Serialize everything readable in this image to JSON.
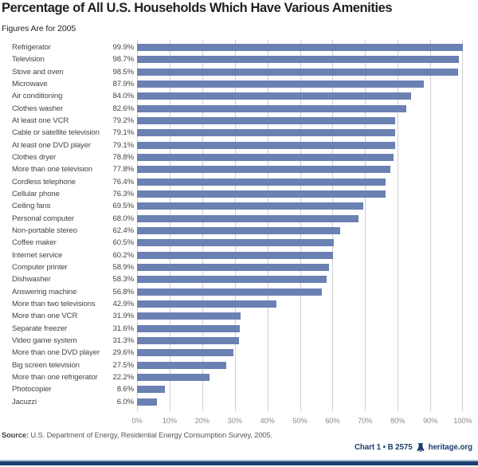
{
  "page": {
    "title": "Percentage of All U.S. Households Which Have Various Amenities",
    "subtitle": "Figures Are for 2005",
    "source_label": "Source:",
    "source_text": " U.S. Department of Energy, Residential Energy Consumption Survey, 2005.",
    "credit": "Chart 1 • B 2575",
    "site": "heritage.org"
  },
  "colors": {
    "bar": "#6b81b3",
    "gridline": "#cfcfcf",
    "axis_label": "#8a8a8a",
    "credit_text": "#1c3e6e",
    "footer_bar": "#1d3c6e",
    "footer_bar_top": "#a3b8d4"
  },
  "icons": {
    "heritage_bell": "liberty-bell-icon"
  },
  "chart_data": {
    "type": "bar",
    "orientation": "horizontal",
    "title": "Percentage of All U.S. Households Which Have Various Amenities",
    "subtitle": "Figures Are for 2005",
    "categories": [
      "Refrigerator",
      "Television",
      "Stove and oven",
      "Microwave",
      "Air conditioning",
      "Clothes washer",
      "At least one VCR",
      "Cable or satellite television",
      "At least one DVD player",
      "Clothes dryer",
      "More than one television",
      "Cordless telephone",
      "Cellular phone",
      "Ceiling fans",
      "Personal computer",
      "Non-portable stereo",
      "Coffee maker",
      "Internet service",
      "Computer printer",
      "Dishwasher",
      "Answering machine",
      "More than two televisions",
      "More than one VCR",
      "Separate freezer",
      "Video game system",
      "More than one DVD player",
      "Big screen television",
      "More than one refrigerator",
      "Photocopier",
      "Jacuzzi"
    ],
    "values": [
      99.9,
      98.7,
      98.5,
      87.9,
      84.0,
      82.6,
      79.2,
      79.1,
      79.1,
      78.8,
      77.8,
      76.4,
      76.3,
      69.5,
      68.0,
      62.4,
      60.5,
      60.2,
      58.9,
      58.3,
      56.8,
      42.9,
      31.9,
      31.6,
      31.3,
      29.6,
      27.5,
      22.2,
      8.6,
      6.0
    ],
    "value_labels": [
      "99.9%",
      "98.7%",
      "98.5%",
      "87.9%",
      "84.0%",
      "82.6%",
      "79.2%",
      "79.1%",
      "79.1%",
      "78.8%",
      "77.8%",
      "76.4%",
      "76.3%",
      "69.5%",
      "68.0%",
      "62.4%",
      "60.5%",
      "60.2%",
      "58.9%",
      "58.3%",
      "56.8%",
      "42.9%",
      "31.9%",
      "31.6%",
      "31.3%",
      "29.6%",
      "27.5%",
      "22.2%",
      "8.6%",
      "6.0%"
    ],
    "xlim": [
      0,
      100
    ],
    "x_ticks": [
      "0%",
      "10%",
      "20%",
      "30%",
      "40%",
      "50%",
      "60%",
      "70%",
      "80%",
      "90%",
      "100%"
    ],
    "grid": true,
    "legend": false,
    "source": "U.S. Department of Energy, Residential Energy Consumption Survey, 2005."
  }
}
